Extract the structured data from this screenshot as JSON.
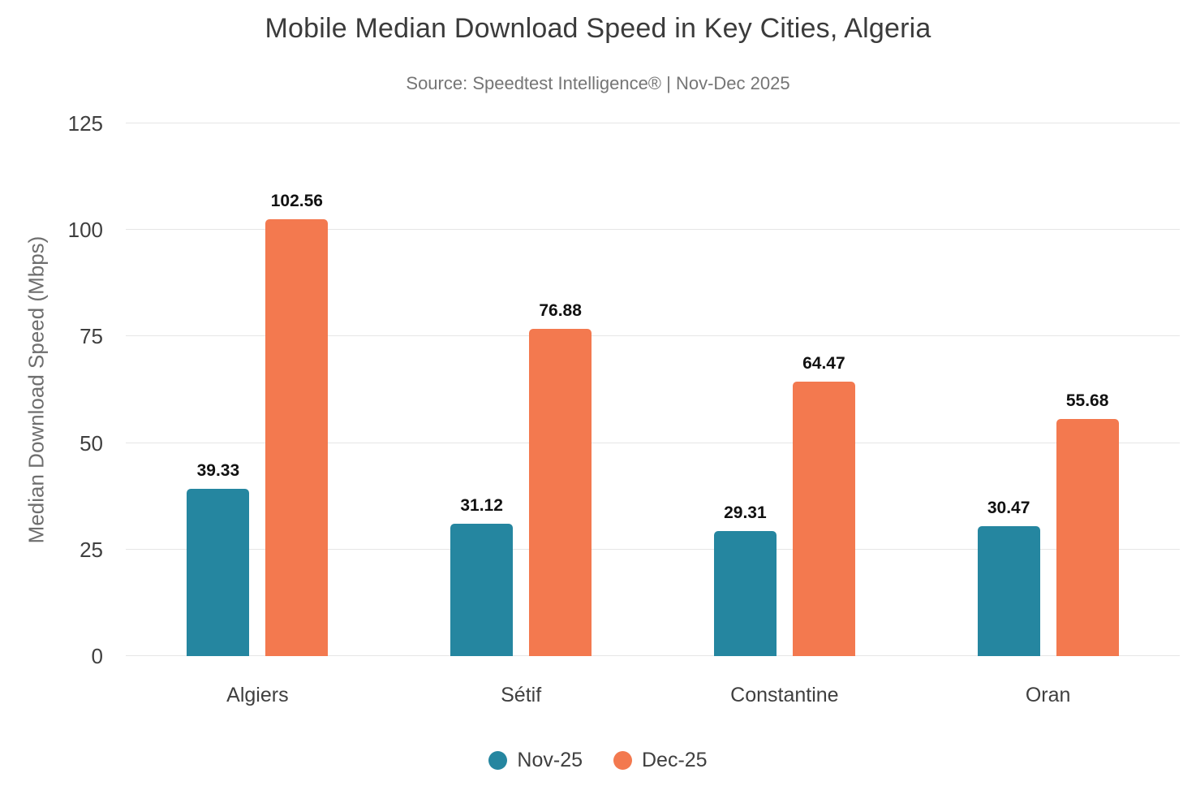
{
  "chart_data": {
    "type": "bar",
    "title": "Mobile Median Download Speed in Key Cities, Algeria",
    "subtitle": "Source: Speedtest Intelligence® | Nov-Dec 2025",
    "ylabel": "Median Download Speed (Mbps)",
    "xlabel": "",
    "categories": [
      "Algiers",
      "Sétif",
      "Constantine",
      "Oran"
    ],
    "series": [
      {
        "name": "Nov-25",
        "color": "#2586a0",
        "values": [
          39.33,
          31.12,
          29.31,
          30.47
        ]
      },
      {
        "name": "Dec-25",
        "color": "#f3794f",
        "values": [
          102.56,
          76.88,
          64.47,
          55.68
        ]
      }
    ],
    "ylim": [
      0,
      125
    ],
    "yticks": [
      0,
      25,
      50,
      75,
      100,
      125
    ],
    "grid": true,
    "legend_position": "bottom",
    "value_labels": true,
    "value_label_decimals": 2
  },
  "colors": {
    "background": "#ffffff",
    "title_text": "#3b3b3b",
    "subtitle_text": "#757575",
    "tick_text": "#3f3f3f",
    "axis_title_text": "#6e6e6e",
    "gridline": "#e6e6e6",
    "value_label_text": "#111111",
    "series_nov": "#2586a0",
    "series_dec": "#f3794f"
  }
}
